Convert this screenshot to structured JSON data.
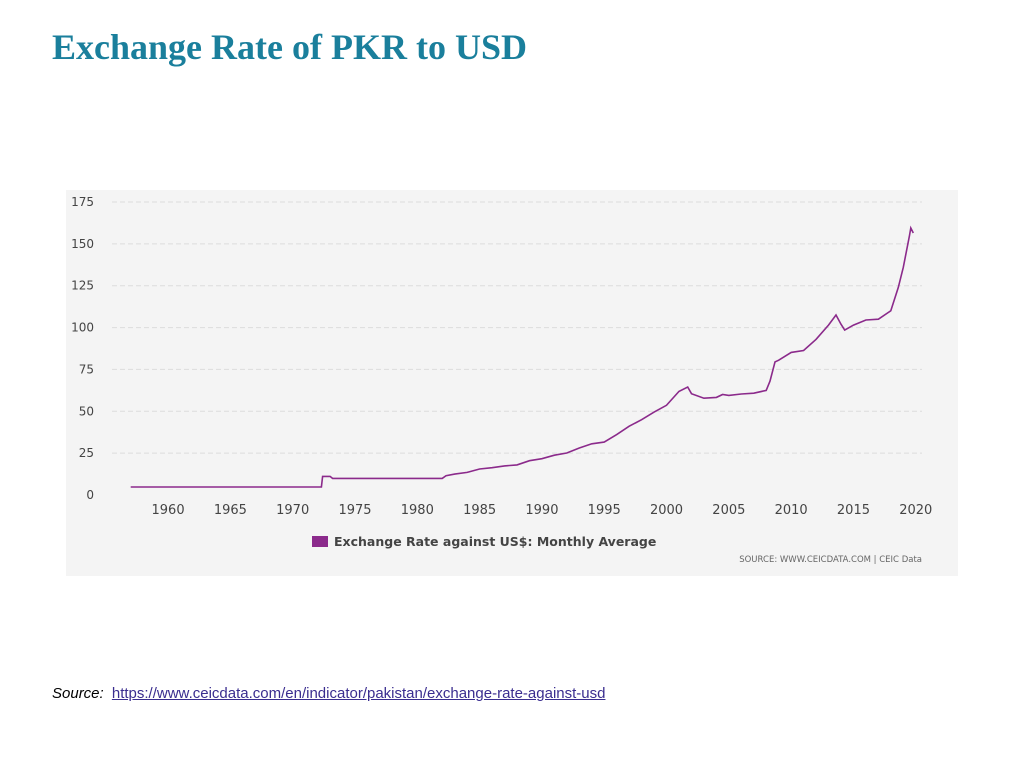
{
  "slide": {
    "title": "Exchange Rate of PKR to USD",
    "source_label": "Source:",
    "source_url": "https://www.ceicdata.com/en/indicator/pakistan/exchange-rate-against-usd"
  },
  "colors": {
    "title": "#1a7f9c",
    "series": "#8b2a8b",
    "grid": "#dcdcdc",
    "axis_text": "#444444",
    "source_text": "#666666"
  },
  "chart_data": {
    "type": "line",
    "title": "",
    "xlabel": "",
    "ylabel": "",
    "xlim": [
      1955.5,
      2020.5
    ],
    "ylim": [
      0,
      175
    ],
    "grid": true,
    "legend_position": "bottom-left",
    "x_ticks": [
      1960,
      1965,
      1970,
      1975,
      1980,
      1985,
      1990,
      1995,
      2000,
      2005,
      2010,
      2015,
      2020
    ],
    "y_ticks": [
      0,
      25,
      50,
      75,
      100,
      125,
      150,
      175
    ],
    "source_note": "SOURCE: WWW.CEICDATA.COM | CEIC Data",
    "series": [
      {
        "name": "Exchange Rate against US$: Monthly Average",
        "points": [
          [
            1957.0,
            4.76
          ],
          [
            1972.3,
            4.76
          ],
          [
            1972.4,
            11.1
          ],
          [
            1973.0,
            11.1
          ],
          [
            1973.2,
            9.9
          ],
          [
            1982.0,
            9.9
          ],
          [
            1982.3,
            11.5
          ],
          [
            1983.0,
            12.5
          ],
          [
            1984.0,
            13.5
          ],
          [
            1985.0,
            15.5
          ],
          [
            1986.0,
            16.3
          ],
          [
            1987.0,
            17.4
          ],
          [
            1988.0,
            18.0
          ],
          [
            1989.0,
            20.5
          ],
          [
            1990.0,
            21.7
          ],
          [
            1991.0,
            23.8
          ],
          [
            1992.0,
            25.1
          ],
          [
            1993.0,
            28.1
          ],
          [
            1994.0,
            30.6
          ],
          [
            1995.0,
            31.6
          ],
          [
            1996.0,
            36.1
          ],
          [
            1997.0,
            41.1
          ],
          [
            1998.0,
            45.0
          ],
          [
            1999.0,
            49.5
          ],
          [
            2000.0,
            53.6
          ],
          [
            2001.0,
            61.9
          ],
          [
            2001.7,
            64.5
          ],
          [
            2002.0,
            60.5
          ],
          [
            2003.0,
            57.8
          ],
          [
            2004.0,
            58.3
          ],
          [
            2004.5,
            60.0
          ],
          [
            2005.0,
            59.5
          ],
          [
            2006.0,
            60.3
          ],
          [
            2007.0,
            60.8
          ],
          [
            2008.0,
            62.5
          ],
          [
            2008.3,
            68.0
          ],
          [
            2008.7,
            79.5
          ],
          [
            2009.0,
            80.5
          ],
          [
            2010.0,
            85.2
          ],
          [
            2011.0,
            86.3
          ],
          [
            2012.0,
            93.0
          ],
          [
            2013.0,
            101.5
          ],
          [
            2013.6,
            107.5
          ],
          [
            2014.0,
            102.0
          ],
          [
            2014.3,
            98.5
          ],
          [
            2015.0,
            101.5
          ],
          [
            2016.0,
            104.5
          ],
          [
            2017.0,
            105.0
          ],
          [
            2018.0,
            110.0
          ],
          [
            2018.6,
            124.0
          ],
          [
            2019.0,
            136.0
          ],
          [
            2019.5,
            155.0
          ],
          [
            2019.6,
            159.5
          ],
          [
            2019.8,
            156.5
          ]
        ]
      }
    ]
  }
}
